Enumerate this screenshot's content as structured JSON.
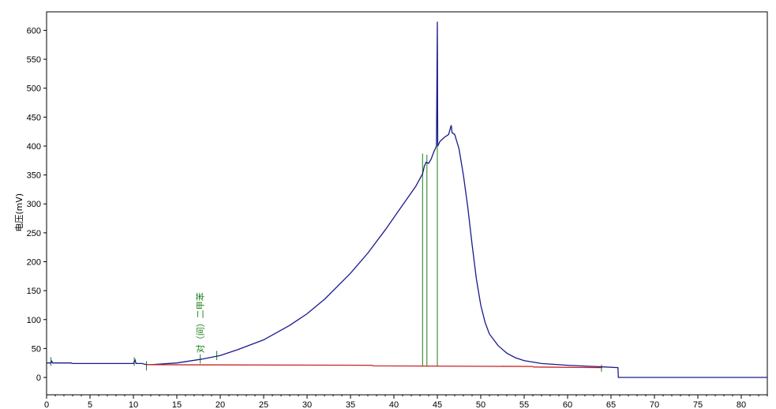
{
  "chart_data": {
    "type": "line",
    "ylabel": "电压(mV)",
    "xlabel": "",
    "xlim": [
      0,
      83
    ],
    "ylim": [
      -30,
      632
    ],
    "x_ticks": [
      0,
      5,
      10,
      15,
      20,
      25,
      30,
      35,
      40,
      45,
      50,
      55,
      60,
      65,
      70,
      75,
      80
    ],
    "y_ticks": [
      0,
      50,
      100,
      150,
      200,
      250,
      300,
      350,
      400,
      450,
      500,
      550,
      600
    ],
    "grid": false,
    "colors": {
      "signal": "#1a1a8c",
      "baseline": "#cc2222",
      "marker": "#1a7f1a",
      "frame": "#000000"
    },
    "series": [
      {
        "role": "signal",
        "points": [
          [
            0,
            25
          ],
          [
            0.5,
            25
          ],
          [
            0.6,
            28
          ],
          [
            0.7,
            25
          ],
          [
            2.8,
            25
          ],
          [
            3,
            24
          ],
          [
            10,
            24
          ],
          [
            10.2,
            30
          ],
          [
            10.3,
            24
          ],
          [
            11,
            24
          ],
          [
            11.5,
            22
          ],
          [
            12,
            22
          ],
          [
            15,
            25
          ],
          [
            18,
            32
          ],
          [
            20,
            38
          ],
          [
            22,
            48
          ],
          [
            25,
            65
          ],
          [
            28,
            90
          ],
          [
            30,
            110
          ],
          [
            32,
            135
          ],
          [
            35,
            180
          ],
          [
            37,
            215
          ],
          [
            39,
            255
          ],
          [
            41,
            298
          ],
          [
            42.5,
            330
          ],
          [
            43.3,
            352
          ],
          [
            43.5,
            365
          ],
          [
            43.7,
            372
          ],
          [
            44,
            370
          ],
          [
            44.3,
            378
          ],
          [
            44.6,
            390
          ],
          [
            44.9,
            400
          ],
          [
            45,
            615
          ],
          [
            45.05,
            400
          ],
          [
            45.3,
            408
          ],
          [
            45.8,
            415
          ],
          [
            46.3,
            420
          ],
          [
            46.6,
            436
          ],
          [
            46.7,
            423
          ],
          [
            47,
            420
          ],
          [
            47.5,
            395
          ],
          [
            48,
            350
          ],
          [
            48.5,
            295
          ],
          [
            49,
            230
          ],
          [
            49.5,
            170
          ],
          [
            50,
            125
          ],
          [
            50.5,
            95
          ],
          [
            51,
            75
          ],
          [
            52,
            55
          ],
          [
            53,
            42
          ],
          [
            54,
            34
          ],
          [
            55,
            29
          ],
          [
            57,
            24
          ],
          [
            60,
            21
          ],
          [
            63,
            19
          ],
          [
            65.8,
            17
          ],
          [
            65.85,
            0
          ],
          [
            83,
            0
          ]
        ]
      },
      {
        "role": "baseline",
        "points": [
          [
            11.5,
            22
          ],
          [
            37.5,
            21
          ],
          [
            37.6,
            20
          ],
          [
            56,
            19
          ],
          [
            56.1,
            18
          ],
          [
            64,
            17
          ]
        ]
      }
    ],
    "markers": [
      {
        "x": 0.5,
        "y1": 20,
        "y2": 35
      },
      {
        "x": 10.1,
        "y1": 20,
        "y2": 35
      },
      {
        "x": 11.5,
        "y1": 12,
        "y2": 28
      },
      {
        "x": 17.7,
        "y1": 24,
        "y2": 40
      },
      {
        "x": 19.6,
        "y1": 30,
        "y2": 46
      },
      {
        "x": 43.3,
        "y1": 19,
        "y2": 387
      },
      {
        "x": 43.8,
        "y1": 19,
        "y2": 385
      },
      {
        "x": 45.0,
        "y1": 19,
        "y2": 400
      },
      {
        "x": 63.9,
        "y1": 10,
        "y2": 22
      }
    ],
    "annotations": [
      {
        "text": "对（间）二甲苯",
        "x": 17.7,
        "y": 42
      }
    ]
  }
}
